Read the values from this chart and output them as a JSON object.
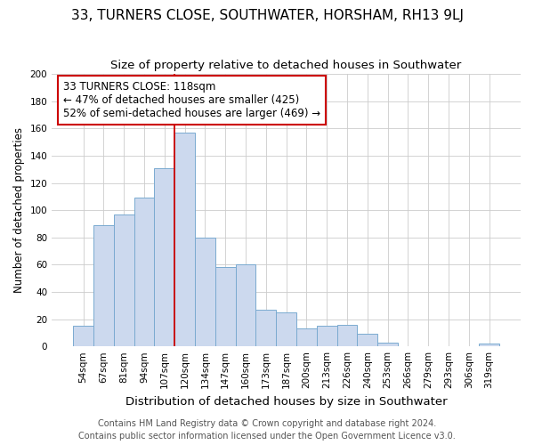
{
  "title": "33, TURNERS CLOSE, SOUTHWATER, HORSHAM, RH13 9LJ",
  "subtitle": "Size of property relative to detached houses in Southwater",
  "xlabel": "Distribution of detached houses by size in Southwater",
  "ylabel": "Number of detached properties",
  "bar_labels": [
    "54sqm",
    "67sqm",
    "81sqm",
    "94sqm",
    "107sqm",
    "120sqm",
    "134sqm",
    "147sqm",
    "160sqm",
    "173sqm",
    "187sqm",
    "200sqm",
    "213sqm",
    "226sqm",
    "240sqm",
    "253sqm",
    "266sqm",
    "279sqm",
    "293sqm",
    "306sqm",
    "319sqm"
  ],
  "bar_heights": [
    15,
    89,
    97,
    109,
    131,
    157,
    80,
    58,
    60,
    27,
    25,
    13,
    15,
    16,
    9,
    3,
    0,
    0,
    0,
    0,
    2
  ],
  "bar_color": "#ccd9ee",
  "bar_edge_color": "#7aaad0",
  "vline_x_index": 5,
  "vline_color": "#cc0000",
  "annotation_text": "33 TURNERS CLOSE: 118sqm\n← 47% of detached houses are smaller (425)\n52% of semi-detached houses are larger (469) →",
  "annotation_box_edge_color": "#cc0000",
  "ylim": [
    0,
    200
  ],
  "yticks": [
    0,
    20,
    40,
    60,
    80,
    100,
    120,
    140,
    160,
    180,
    200
  ],
  "footer_line1": "Contains HM Land Registry data © Crown copyright and database right 2024.",
  "footer_line2": "Contains public sector information licensed under the Open Government Licence v3.0.",
  "title_fontsize": 11,
  "subtitle_fontsize": 9.5,
  "xlabel_fontsize": 9.5,
  "ylabel_fontsize": 8.5,
  "tick_fontsize": 7.5,
  "annotation_fontsize": 8.5,
  "footer_fontsize": 7
}
